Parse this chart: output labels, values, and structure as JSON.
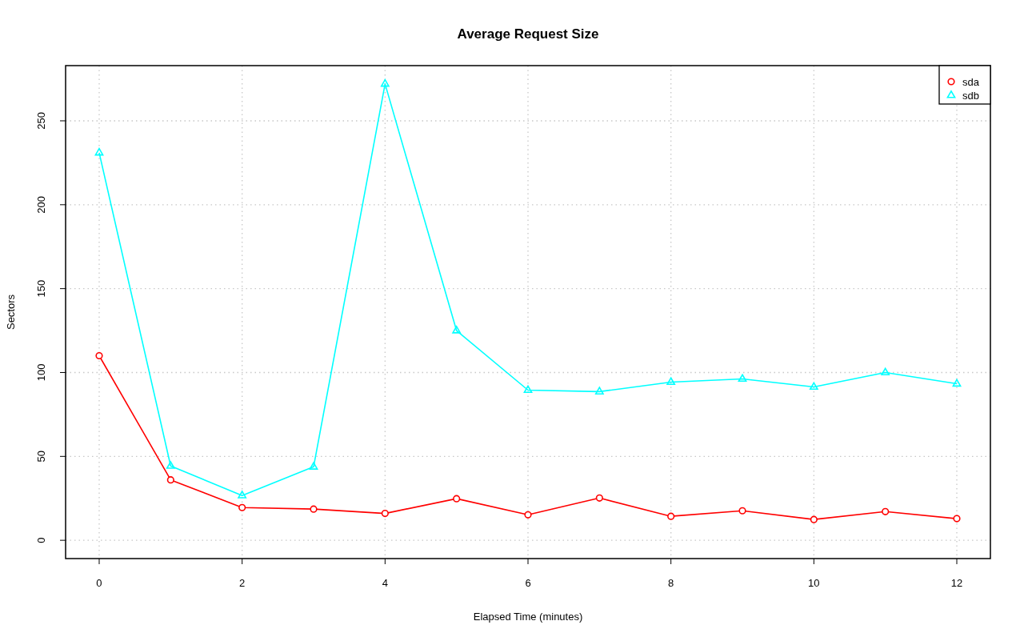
{
  "chart_data": {
    "type": "line",
    "title": "Average Request Size",
    "xlabel": "Elapsed Time (minutes)",
    "ylabel": "Sectors",
    "x": [
      0,
      1,
      2,
      3,
      4,
      5,
      6,
      7,
      8,
      9,
      10,
      11,
      12
    ],
    "series": [
      {
        "name": "sda",
        "color": "#ff0000",
        "marker": "circle",
        "values": [
          110,
          36,
          19.5,
          18.6,
          16,
          24.8,
          15.2,
          25.2,
          14.3,
          17.6,
          12.4,
          17.1,
          12.9
        ]
      },
      {
        "name": "sdb",
        "color": "#00ffff",
        "marker": "triangle",
        "values": [
          231,
          44.3,
          26.7,
          43.8,
          272,
          125,
          89.5,
          88.6,
          94.3,
          96.2,
          91.4,
          100,
          93.3
        ]
      }
    ],
    "xlim": [
      -0.47,
      12.47
    ],
    "ylim": [
      -10.9,
      282.9
    ],
    "xticks": [
      0,
      2,
      4,
      6,
      8,
      10,
      12
    ],
    "yticks": [
      0,
      50,
      100,
      150,
      200,
      250
    ],
    "grid": true,
    "legend": "top right",
    "line_style": "solid"
  }
}
